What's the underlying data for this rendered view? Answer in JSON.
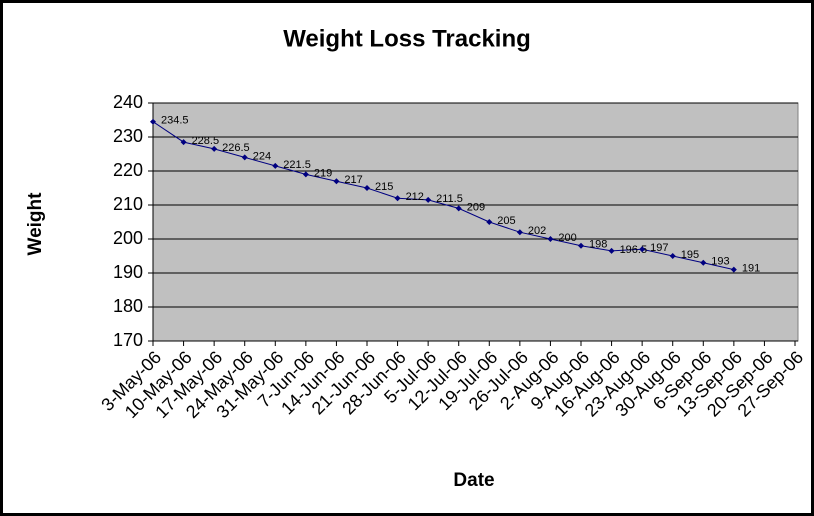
{
  "chart_data": {
    "type": "line",
    "title": "Weight Loss Tracking",
    "x_label": "Date",
    "y_label": "Weight",
    "categories": [
      "3-May-06",
      "10-May-06",
      "17-May-06",
      "24-May-06",
      "31-May-06",
      "7-Jun-06",
      "14-Jun-06",
      "21-Jun-06",
      "28-Jun-06",
      "5-Jul-06",
      "12-Jul-06",
      "19-Jul-06",
      "26-Jul-06",
      "2-Aug-06",
      "9-Aug-06",
      "16-Aug-06",
      "23-Aug-06",
      "30-Aug-06",
      "6-Sep-06",
      "13-Sep-06",
      "20-Sep-06",
      "27-Sep-06"
    ],
    "values": [
      234.5,
      228.5,
      226.5,
      224,
      221.5,
      219,
      217,
      215,
      212,
      211.5,
      209,
      205,
      202,
      200,
      198,
      196.5,
      197,
      195,
      193,
      191,
      null,
      null
    ],
    "color": "#000080",
    "ylim": [
      170,
      240
    ],
    "yticks": [
      170,
      180,
      190,
      200,
      210,
      220,
      230,
      240
    ],
    "grid": true
  }
}
